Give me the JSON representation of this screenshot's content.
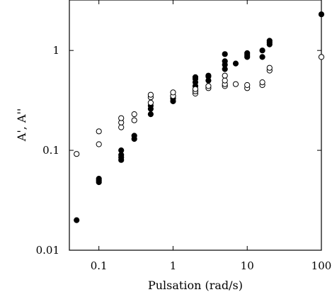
{
  "chart_data": {
    "type": "scatter",
    "xlabel": "Pulsation (rad/s)",
    "ylabel": "A', A''",
    "x_scale": "log",
    "y_scale": "log",
    "xlim": [
      0.04,
      100
    ],
    "ylim": [
      0.01,
      3.2
    ],
    "x_ticks": [
      0.1,
      1,
      10,
      100
    ],
    "x_tick_labels": [
      "0.1",
      "1",
      "10",
      "100"
    ],
    "y_ticks": [
      0.01,
      0.1,
      1
    ],
    "y_tick_labels": [
      "0.01",
      "0.1",
      "1"
    ],
    "grid": false,
    "series": [
      {
        "marker": "filled-circle",
        "color": "#000000",
        "points": [
          [
            0.05,
            0.02
          ],
          [
            0.1,
            0.048
          ],
          [
            0.1,
            0.05
          ],
          [
            0.1,
            0.052
          ],
          [
            0.2,
            0.08
          ],
          [
            0.2,
            0.085
          ],
          [
            0.2,
            0.09
          ],
          [
            0.2,
            0.1
          ],
          [
            0.3,
            0.13
          ],
          [
            0.3,
            0.14
          ],
          [
            0.5,
            0.23
          ],
          [
            0.5,
            0.26
          ],
          [
            0.5,
            0.28
          ],
          [
            1,
            0.31
          ],
          [
            1,
            0.33
          ],
          [
            1,
            0.35
          ],
          [
            2,
            0.44
          ],
          [
            2,
            0.48
          ],
          [
            2,
            0.52
          ],
          [
            2,
            0.54
          ],
          [
            3,
            0.5
          ],
          [
            3,
            0.55
          ],
          [
            3,
            0.56
          ],
          [
            5,
            0.65
          ],
          [
            5,
            0.72
          ],
          [
            5,
            0.78
          ],
          [
            5,
            0.92
          ],
          [
            7,
            0.74
          ],
          [
            10,
            0.86
          ],
          [
            10,
            0.9
          ],
          [
            10,
            0.94
          ],
          [
            16,
            0.86
          ],
          [
            16,
            1.0
          ],
          [
            20,
            1.15
          ],
          [
            20,
            1.2
          ],
          [
            20,
            1.25
          ],
          [
            100,
            2.3
          ]
        ]
      },
      {
        "marker": "open-circle",
        "color": "#000000",
        "points": [
          [
            0.05,
            0.092
          ],
          [
            0.1,
            0.115
          ],
          [
            0.1,
            0.155
          ],
          [
            0.2,
            0.17
          ],
          [
            0.2,
            0.19
          ],
          [
            0.2,
            0.21
          ],
          [
            0.3,
            0.2
          ],
          [
            0.3,
            0.23
          ],
          [
            0.5,
            0.3
          ],
          [
            0.5,
            0.34
          ],
          [
            0.5,
            0.36
          ],
          [
            1,
            0.35
          ],
          [
            1,
            0.38
          ],
          [
            2,
            0.37
          ],
          [
            2,
            0.39
          ],
          [
            2,
            0.41
          ],
          [
            3,
            0.42
          ],
          [
            3,
            0.44
          ],
          [
            5,
            0.44
          ],
          [
            5,
            0.46
          ],
          [
            5,
            0.5
          ],
          [
            5,
            0.56
          ],
          [
            7,
            0.46
          ],
          [
            10,
            0.42
          ],
          [
            10,
            0.45
          ],
          [
            16,
            0.45
          ],
          [
            16,
            0.48
          ],
          [
            20,
            0.63
          ],
          [
            20,
            0.67
          ],
          [
            100,
            0.86
          ]
        ]
      }
    ]
  }
}
